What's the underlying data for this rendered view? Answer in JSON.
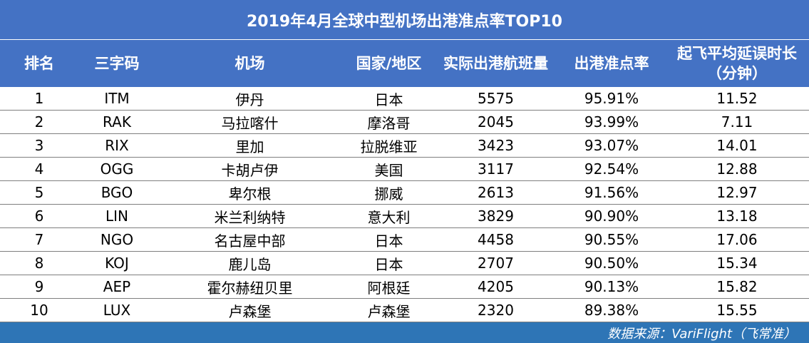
{
  "title": "2019年4月全球中型机场出港准点率TOP10",
  "columns": [
    "排名",
    "三字码",
    "机场",
    "国家/地区",
    "实际出港航班量",
    "出港准点率",
    "起飞平均延误时长\n（分钟）"
  ],
  "rows": [
    [
      "1",
      "ITM",
      "伊丹",
      "日本",
      "5575",
      "95.91%",
      "11.52"
    ],
    [
      "2",
      "RAK",
      "马拉喀什",
      "摩洛哥",
      "2045",
      "93.99%",
      "7.11"
    ],
    [
      "3",
      "RIX",
      "里加",
      "拉脱维亚",
      "3423",
      "93.07%",
      "14.01"
    ],
    [
      "4",
      "OGG",
      "卡胡卢伊",
      "美国",
      "3117",
      "92.54%",
      "12.88"
    ],
    [
      "5",
      "BGO",
      "卑尔根",
      "挪威",
      "2613",
      "91.56%",
      "12.97"
    ],
    [
      "6",
      "LIN",
      "米兰利纳特",
      "意大利",
      "3829",
      "90.90%",
      "13.18"
    ],
    [
      "7",
      "NGO",
      "名古屋中部",
      "日本",
      "4458",
      "90.55%",
      "17.06"
    ],
    [
      "8",
      "KOJ",
      "鹿儿岛",
      "日本",
      "2707",
      "90.50%",
      "15.34"
    ],
    [
      "9",
      "AEP",
      "霍尔赫纽贝里",
      "阿根廷",
      "4205",
      "90.13%",
      "15.82"
    ],
    [
      "10",
      "LUX",
      "卢森堡",
      "卢森堡",
      "2320",
      "89.38%",
      "15.55"
    ]
  ],
  "footer": "数据来源：VariFlight（飞常准）",
  "colors": {
    "header_bg": "#4472c4",
    "footer_bg": "#2e75b6",
    "row_border": "#7f7f7f"
  }
}
